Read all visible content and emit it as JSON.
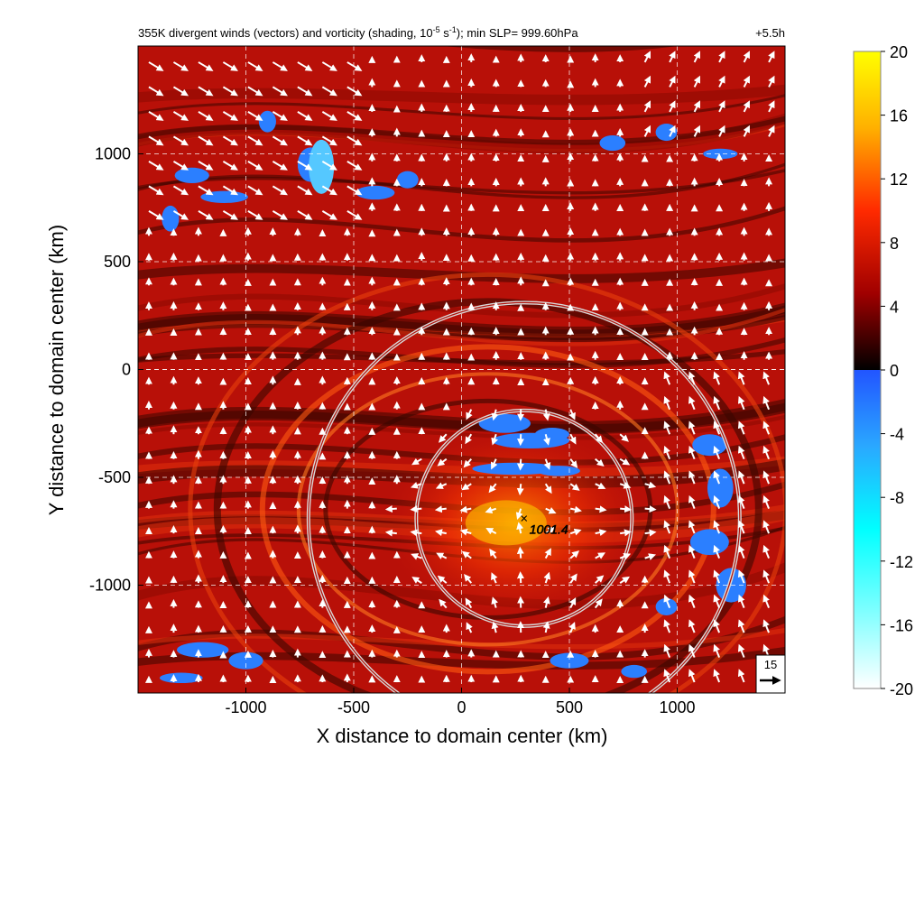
{
  "chart_data": {
    "type": "heatmap",
    "title_parts": {
      "before_exp": "355K divergent winds (vectors) and vorticity (shading, 10",
      "exp1": "-5",
      "middle": " s",
      "exp2": "-1",
      "after": "); min SLP= 999.60hPa"
    },
    "time_label": "+5.5h",
    "xlabel": "X distance to domain center (km)",
    "ylabel": "Y distance to domain center (km)",
    "xlim": [
      -1500,
      1500
    ],
    "ylim": [
      -1500,
      1500
    ],
    "xticks": [
      -1000,
      -500,
      0,
      500,
      1000
    ],
    "yticks": [
      -1000,
      -500,
      0,
      500,
      1000
    ],
    "grid": true,
    "grid_style": "dashed",
    "colorbar": {
      "ticks": [
        20,
        16,
        12,
        8,
        4,
        0,
        -4,
        -8,
        -12,
        -16,
        -20
      ],
      "range": [
        -20,
        20
      ]
    },
    "colors": {
      "background_red": "#c01208",
      "dark_band": "#3a0600",
      "bright_band": "#ff6a10",
      "yellow_core": "#ffd000",
      "negative_blue": "#2b7fff",
      "cyan": "#00ffff",
      "ring": "#d9d9d9",
      "vector": "#ffffff"
    },
    "center_marker": {
      "symbol": "×",
      "label": "1001.4",
      "x": 290,
      "y": -690
    },
    "rings": [
      {
        "center_x": 290,
        "center_y": -690,
        "radius_km": 500
      },
      {
        "center_x": 290,
        "center_y": -690,
        "radius_km": 1000
      }
    ],
    "reference_vector": {
      "label": "15"
    }
  }
}
